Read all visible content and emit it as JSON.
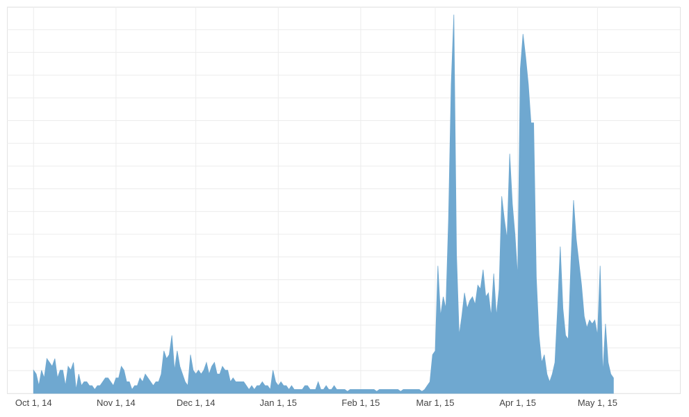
{
  "chart_data": {
    "type": "area",
    "title": "",
    "xlabel": "",
    "ylabel": "",
    "grid": true,
    "legend": "none",
    "color": "#6fa8d0",
    "x_tick_labels": [
      "Oct 1, 14",
      "Nov 1, 14",
      "Dec 1, 14",
      "Jan 1, 15",
      "Feb 1, 15",
      "Mar 1, 15",
      "Apr 1, 15",
      "May 1, 15"
    ],
    "x_tick_days": [
      0,
      31,
      61,
      92,
      123,
      151,
      182,
      212
    ],
    "x_range_days": [
      -10,
      243
    ],
    "ylim": [
      0,
      100
    ],
    "y_ticks_count": 17,
    "series": [
      {
        "values": [
          [
            0,
            6
          ],
          [
            1,
            5
          ],
          [
            2,
            2
          ],
          [
            3,
            6
          ],
          [
            4,
            4
          ],
          [
            5,
            9
          ],
          [
            6,
            8
          ],
          [
            7,
            7
          ],
          [
            8,
            9
          ],
          [
            9,
            4
          ],
          [
            10,
            6
          ],
          [
            11,
            6
          ],
          [
            12,
            2
          ],
          [
            13,
            7
          ],
          [
            14,
            6
          ],
          [
            15,
            8
          ],
          [
            16,
            1
          ],
          [
            17,
            5
          ],
          [
            18,
            2
          ],
          [
            19,
            3
          ],
          [
            20,
            3
          ],
          [
            21,
            2
          ],
          [
            22,
            2
          ],
          [
            23,
            1
          ],
          [
            24,
            2
          ],
          [
            25,
            2
          ],
          [
            26,
            3
          ],
          [
            27,
            4
          ],
          [
            28,
            4
          ],
          [
            29,
            3
          ],
          [
            30,
            2
          ],
          [
            31,
            4
          ],
          [
            32,
            4
          ],
          [
            33,
            7
          ],
          [
            34,
            6
          ],
          [
            35,
            3
          ],
          [
            36,
            3
          ],
          [
            37,
            1
          ],
          [
            38,
            2
          ],
          [
            39,
            2
          ],
          [
            40,
            4
          ],
          [
            41,
            3
          ],
          [
            42,
            5
          ],
          [
            43,
            4
          ],
          [
            44,
            3
          ],
          [
            45,
            2
          ],
          [
            46,
            3
          ],
          [
            47,
            3
          ],
          [
            48,
            5
          ],
          [
            49,
            11
          ],
          [
            50,
            9
          ],
          [
            51,
            10
          ],
          [
            52,
            15
          ],
          [
            53,
            6
          ],
          [
            54,
            11
          ],
          [
            55,
            7
          ],
          [
            56,
            5
          ],
          [
            57,
            3
          ],
          [
            58,
            2
          ],
          [
            59,
            10
          ],
          [
            60,
            6
          ],
          [
            61,
            5
          ],
          [
            62,
            6
          ],
          [
            63,
            5
          ],
          [
            64,
            6
          ],
          [
            65,
            8
          ],
          [
            66,
            5
          ],
          [
            67,
            7
          ],
          [
            68,
            8
          ],
          [
            69,
            5
          ],
          [
            70,
            5
          ],
          [
            71,
            7
          ],
          [
            72,
            6
          ],
          [
            73,
            6
          ],
          [
            74,
            3
          ],
          [
            75,
            4
          ],
          [
            76,
            3
          ],
          [
            77,
            3
          ],
          [
            78,
            3
          ],
          [
            79,
            3
          ],
          [
            80,
            2
          ],
          [
            81,
            1
          ],
          [
            82,
            2
          ],
          [
            83,
            1
          ],
          [
            84,
            2
          ],
          [
            85,
            2
          ],
          [
            86,
            3
          ],
          [
            87,
            2
          ],
          [
            88,
            2
          ],
          [
            89,
            1
          ],
          [
            90,
            6
          ],
          [
            91,
            3
          ],
          [
            92,
            2
          ],
          [
            93,
            3
          ],
          [
            94,
            2
          ],
          [
            95,
            2
          ],
          [
            96,
            1
          ],
          [
            97,
            2
          ],
          [
            98,
            1
          ],
          [
            99,
            1
          ],
          [
            100,
            1
          ],
          [
            101,
            1
          ],
          [
            102,
            2
          ],
          [
            103,
            2
          ],
          [
            104,
            1
          ],
          [
            105,
            1
          ],
          [
            106,
            1
          ],
          [
            107,
            3
          ],
          [
            108,
            1
          ],
          [
            109,
            1
          ],
          [
            110,
            2
          ],
          [
            111,
            1
          ],
          [
            112,
            1
          ],
          [
            113,
            2
          ],
          [
            114,
            1
          ],
          [
            115,
            1
          ],
          [
            116,
            1
          ],
          [
            117,
            1
          ],
          [
            118,
            0.5
          ],
          [
            119,
            1
          ],
          [
            120,
            1
          ],
          [
            121,
            1
          ],
          [
            122,
            1
          ],
          [
            123,
            1
          ],
          [
            124,
            1
          ],
          [
            125,
            1
          ],
          [
            126,
            1
          ],
          [
            127,
            1
          ],
          [
            128,
            1
          ],
          [
            129,
            0.5
          ],
          [
            130,
            1
          ],
          [
            131,
            1
          ],
          [
            132,
            1
          ],
          [
            133,
            1
          ],
          [
            134,
            1
          ],
          [
            135,
            1
          ],
          [
            136,
            1
          ],
          [
            137,
            1
          ],
          [
            138,
            0.5
          ],
          [
            139,
            1
          ],
          [
            140,
            1
          ],
          [
            141,
            1
          ],
          [
            142,
            1
          ],
          [
            143,
            1
          ],
          [
            144,
            1
          ],
          [
            145,
            1
          ],
          [
            146,
            0.5
          ],
          [
            147,
            1
          ],
          [
            148,
            2
          ],
          [
            149,
            3
          ],
          [
            150,
            10
          ],
          [
            151,
            11
          ],
          [
            152,
            33
          ],
          [
            153,
            20
          ],
          [
            154,
            25
          ],
          [
            155,
            22
          ],
          [
            156,
            45
          ],
          [
            157,
            80
          ],
          [
            158,
            98
          ],
          [
            159,
            36
          ],
          [
            160,
            15
          ],
          [
            161,
            20
          ],
          [
            162,
            26
          ],
          [
            163,
            22
          ],
          [
            164,
            24
          ],
          [
            165,
            25
          ],
          [
            166,
            23
          ],
          [
            167,
            28
          ],
          [
            168,
            27
          ],
          [
            169,
            32
          ],
          [
            170,
            25
          ],
          [
            171,
            26
          ],
          [
            172,
            20
          ],
          [
            173,
            31
          ],
          [
            174,
            20
          ],
          [
            175,
            27
          ],
          [
            176,
            51
          ],
          [
            177,
            45
          ],
          [
            178,
            40
          ],
          [
            179,
            62
          ],
          [
            180,
            49
          ],
          [
            181,
            41
          ],
          [
            182,
            30
          ],
          [
            183,
            84
          ],
          [
            184,
            93
          ],
          [
            185,
            87
          ],
          [
            186,
            80
          ],
          [
            187,
            70
          ],
          [
            188,
            70
          ],
          [
            189,
            30
          ],
          [
            190,
            15
          ],
          [
            191,
            8
          ],
          [
            192,
            10
          ],
          [
            193,
            5
          ],
          [
            194,
            3
          ],
          [
            195,
            5
          ],
          [
            196,
            8
          ],
          [
            197,
            22
          ],
          [
            198,
            38
          ],
          [
            199,
            22
          ],
          [
            200,
            15
          ],
          [
            201,
            14
          ],
          [
            202,
            34
          ],
          [
            203,
            50
          ],
          [
            204,
            40
          ],
          [
            205,
            34
          ],
          [
            206,
            28
          ],
          [
            207,
            20
          ],
          [
            208,
            17
          ],
          [
            209,
            19
          ],
          [
            210,
            18
          ],
          [
            211,
            19
          ],
          [
            212,
            15
          ],
          [
            213,
            33
          ],
          [
            214,
            5
          ],
          [
            215,
            18
          ],
          [
            216,
            8
          ],
          [
            217,
            5
          ],
          [
            218,
            4
          ]
        ]
      }
    ]
  }
}
